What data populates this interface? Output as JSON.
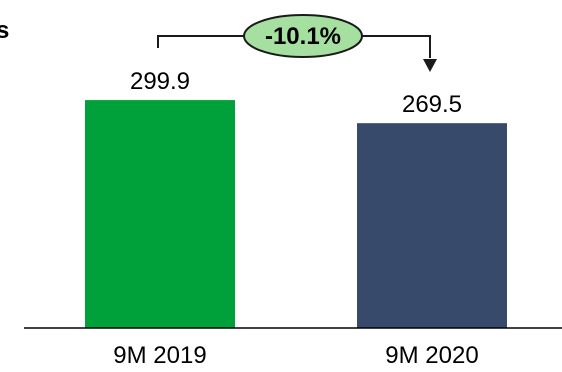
{
  "chart_data": {
    "type": "bar",
    "categories": [
      "9M 2019",
      "9M 2020"
    ],
    "values": [
      299.9,
      269.5
    ],
    "value_labels": [
      "299.9",
      "269.5"
    ],
    "colors": [
      "#00a03a",
      "#374a6b"
    ],
    "ylim": [
      0,
      300
    ],
    "grid": false,
    "legend": "none",
    "change_annotation": {
      "label": "-10.1%",
      "fill": "#a6e0a0",
      "stroke": "#1a1a1a",
      "from": "9M 2019",
      "to": "9M 2020"
    },
    "partial_title": "s"
  }
}
